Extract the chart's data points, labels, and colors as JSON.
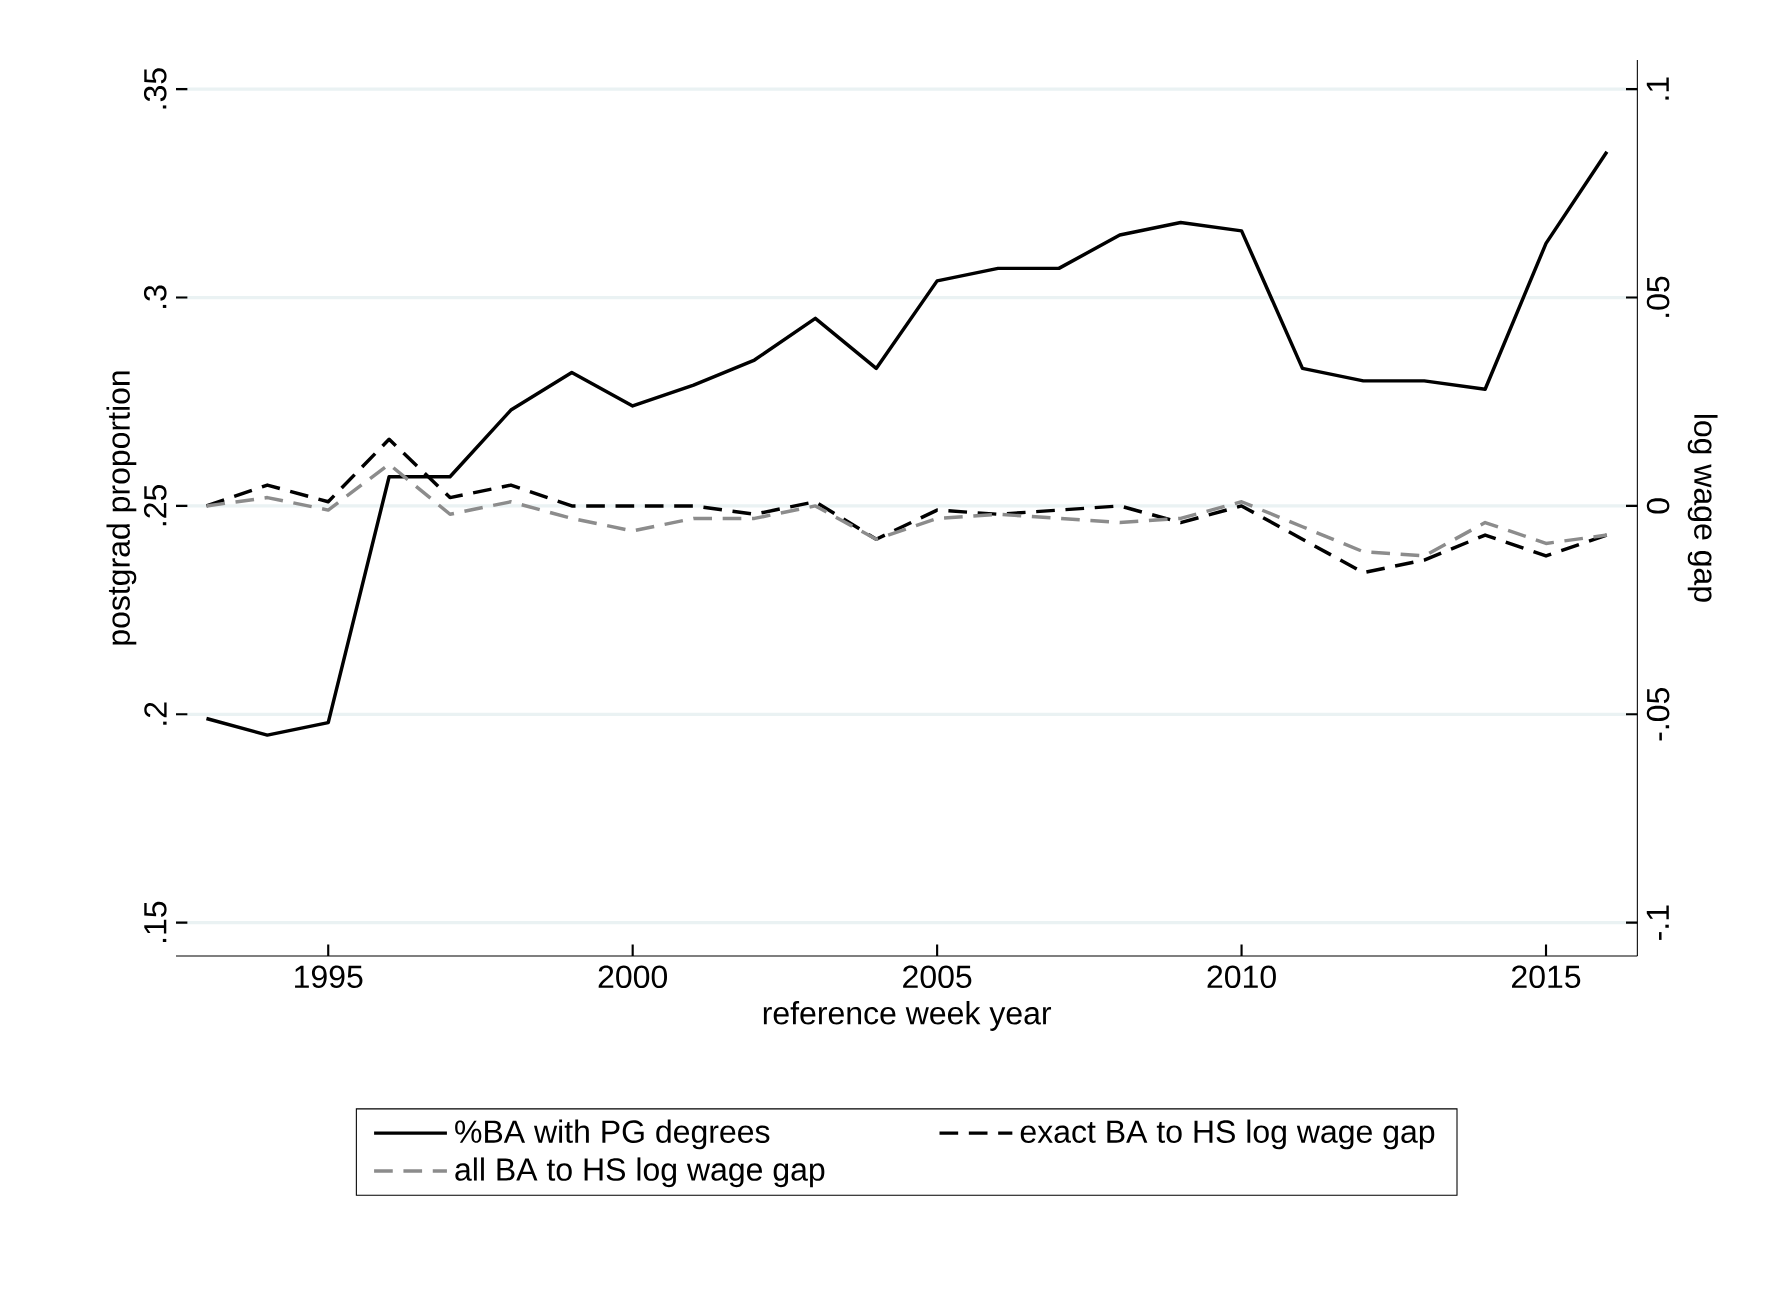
{
  "chart_data": {
    "type": "line",
    "xlabel": "reference week year",
    "ylabel": "postgrad proportion",
    "y2label": "log wage gap",
    "x": [
      1993,
      1994,
      1995,
      1996,
      1997,
      1998,
      1999,
      2000,
      2001,
      2002,
      2003,
      2004,
      2005,
      2006,
      2007,
      2008,
      2009,
      2010,
      2011,
      2012,
      2013,
      2014,
      2015,
      2016
    ],
    "xlim": [
      1992.5,
      2016.5
    ],
    "xticks": [
      1995,
      2000,
      2005,
      2010,
      2015
    ],
    "ylim": [
      0.142,
      0.357
    ],
    "yticks": [
      {
        "value": 0.15,
        "label": ".15"
      },
      {
        "value": 0.2,
        "label": ".2"
      },
      {
        "value": 0.25,
        "label": ".25"
      },
      {
        "value": 0.3,
        "label": ".3"
      },
      {
        "value": 0.35,
        "label": ".35"
      }
    ],
    "y2lim": [
      -0.108,
      0.107
    ],
    "y2ticks": [
      {
        "value": -0.1,
        "label": "-.1"
      },
      {
        "value": -0.05,
        "label": "-.05"
      },
      0,
      {
        "value": 0.05,
        "label": ".05"
      },
      {
        "value": 0.1,
        "label": ".1"
      }
    ],
    "grid": "y",
    "legend": "bottom",
    "series": [
      {
        "name": "%BA with PG degrees",
        "color": "#000000",
        "line_style": "solid",
        "axis": "y",
        "values": [
          0.199,
          0.195,
          0.198,
          0.257,
          0.257,
          0.273,
          0.282,
          0.274,
          0.279,
          0.285,
          0.295,
          0.283,
          0.304,
          0.307,
          0.307,
          0.315,
          0.318,
          0.316,
          0.283,
          0.28,
          0.28,
          0.278,
          0.313,
          0.335
        ]
      },
      {
        "name": "exact BA to HS log wage gap",
        "color": "#000000",
        "line_style": "dashed",
        "axis": "y2",
        "values": [
          0.0,
          0.005,
          0.001,
          0.016,
          0.002,
          0.005,
          0.0,
          0.0,
          0.0,
          -0.002,
          0.001,
          -0.008,
          -0.001,
          -0.002,
          -0.001,
          0.0,
          -0.004,
          0.0,
          -0.008,
          -0.016,
          -0.013,
          -0.007,
          -0.012,
          -0.007
        ]
      },
      {
        "name": "all BA to HS log wage gap",
        "color": "#8c8c8c",
        "line_style": "dashed",
        "axis": "y2",
        "values": [
          0.0,
          0.002,
          -0.001,
          0.01,
          -0.002,
          0.001,
          -0.003,
          -0.006,
          -0.003,
          -0.003,
          0.0,
          -0.008,
          -0.003,
          -0.002,
          -0.003,
          -0.004,
          -0.003,
          0.001,
          -0.005,
          -0.011,
          -0.012,
          -0.004,
          -0.009,
          -0.007
        ]
      }
    ]
  }
}
